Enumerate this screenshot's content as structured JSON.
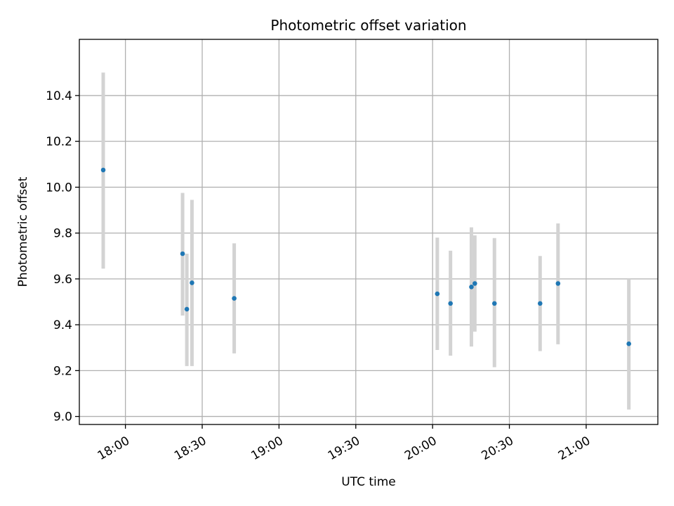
{
  "chart_data": {
    "type": "scatter",
    "title": "Photometric offset variation",
    "xlabel": "UTC time",
    "ylabel": "Photometric offset",
    "x_ticks": [
      "18:00",
      "18:30",
      "19:00",
      "19:30",
      "20:00",
      "20:30",
      "21:00"
    ],
    "y_ticks": [
      "9.0",
      "9.2",
      "9.4",
      "9.6",
      "9.8",
      "10.0",
      "10.2",
      "10.4"
    ],
    "xlim": [
      "17:42",
      "21:28"
    ],
    "ylim": [
      8.965,
      10.645
    ],
    "grid": true,
    "error_bar_color": "#d3d3d3",
    "marker_color": "#1f77b4",
    "points": [
      {
        "x": "17:51:20",
        "y": 10.075,
        "y_low": 9.645,
        "y_high": 10.5
      },
      {
        "x": "18:22:20",
        "y": 9.71,
        "y_low": 9.44,
        "y_high": 9.975
      },
      {
        "x": "18:24:00",
        "y": 9.468,
        "y_low": 9.22,
        "y_high": 9.71
      },
      {
        "x": "18:26:00",
        "y": 9.583,
        "y_low": 9.22,
        "y_high": 9.945
      },
      {
        "x": "18:42:30",
        "y": 9.515,
        "y_low": 9.275,
        "y_high": 9.755
      },
      {
        "x": "20:01:50",
        "y": 9.535,
        "y_low": 9.29,
        "y_high": 9.78
      },
      {
        "x": "20:07:00",
        "y": 9.493,
        "y_low": 9.265,
        "y_high": 9.723
      },
      {
        "x": "20:15:10",
        "y": 9.565,
        "y_low": 9.305,
        "y_high": 9.825
      },
      {
        "x": "20:16:30",
        "y": 9.58,
        "y_low": 9.37,
        "y_high": 9.79
      },
      {
        "x": "20:24:10",
        "y": 9.493,
        "y_low": 9.215,
        "y_high": 9.778
      },
      {
        "x": "20:42:00",
        "y": 9.493,
        "y_low": 9.285,
        "y_high": 9.7
      },
      {
        "x": "20:49:00",
        "y": 9.58,
        "y_low": 9.315,
        "y_high": 9.842
      },
      {
        "x": "21:16:40",
        "y": 9.317,
        "y_low": 9.03,
        "y_high": 9.6
      }
    ]
  }
}
